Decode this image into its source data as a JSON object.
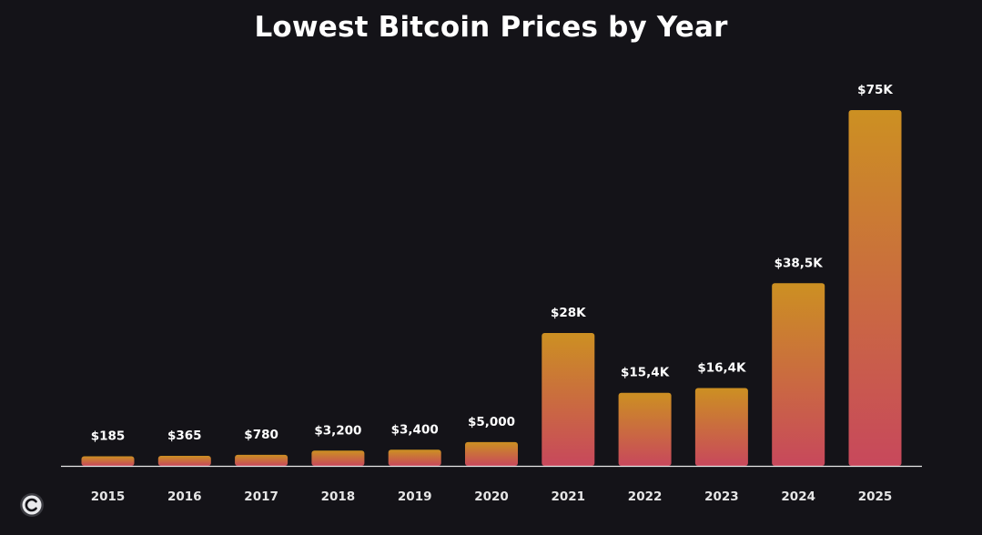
{
  "chart_data": {
    "type": "bar",
    "title": "Lowest Bitcoin Prices by Year",
    "xlabel": "",
    "ylabel": "",
    "ylim": [
      0,
      75000
    ],
    "grid": false,
    "categories": [
      "2015",
      "2016",
      "2017",
      "2018",
      "2019",
      "2020",
      "2021",
      "2022",
      "2023",
      "2024",
      "2025"
    ],
    "values": [
      185,
      365,
      780,
      3200,
      3400,
      5000,
      28000,
      15400,
      16400,
      38500,
      75000
    ],
    "labels": [
      "$185",
      "$365",
      "$780",
      "$3,200",
      "$3,400",
      "$5,000",
      "$28K",
      "$15,4K",
      "$16,4K",
      "$38,5K",
      "$75K"
    ]
  },
  "colors": {
    "background": "#141318",
    "bar_top": "#cc9022",
    "bar_bottom": "#c8485c",
    "axis": "#e8e8e8"
  },
  "logo_icon": "copyright-logo-icon"
}
